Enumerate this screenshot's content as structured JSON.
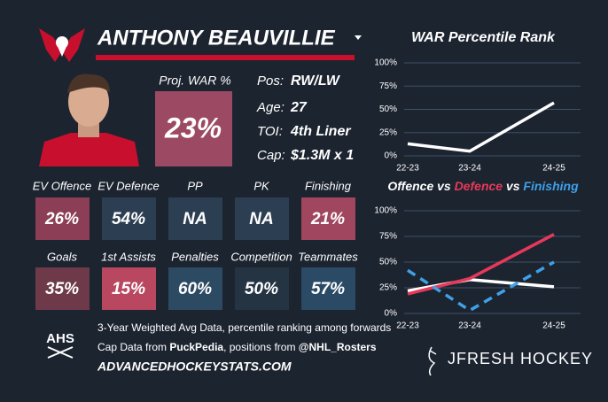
{
  "player": {
    "name": "ANTHONY BEAUVILLIE",
    "proj_war": {
      "label": "Proj. WAR %",
      "value": "23%",
      "color": "#9c4a63"
    },
    "info": [
      {
        "label": "Pos:",
        "value": "RW/LW"
      },
      {
        "label": "Age:",
        "value": "27"
      },
      {
        "label": "TOI:",
        "value": "4th Liner"
      },
      {
        "label": "Cap:",
        "value": "$1.3M x 1"
      }
    ]
  },
  "tiles": [
    {
      "label": "EV Offence",
      "value": "26%",
      "color": "#8b3e55"
    },
    {
      "label": "EV Defence",
      "value": "54%",
      "color": "#2c3e52"
    },
    {
      "label": "PP",
      "value": "NA",
      "color": "#2c3e52"
    },
    {
      "label": "PK",
      "value": "NA",
      "color": "#2c3e52"
    },
    {
      "label": "Finishing",
      "value": "21%",
      "color": "#a0475f"
    },
    {
      "label": "Goals",
      "value": "35%",
      "color": "#6e3a4a"
    },
    {
      "label": "1st Assists",
      "value": "15%",
      "color": "#b8475f"
    },
    {
      "label": "Penalties",
      "value": "60%",
      "color": "#2d4a63"
    },
    {
      "label": "Competition",
      "value": "50%",
      "color": "#253443"
    },
    {
      "label": "Teammates",
      "value": "57%",
      "color": "#2a4a66"
    }
  ],
  "footer": {
    "line1": "3-Year Weighted Avg Data, percentile ranking among forwards",
    "line2": [
      "Cap Data from ",
      "PuckPedia",
      ", positions from ",
      "@NHL_Rosters"
    ],
    "site": "ADVANCEDHOCKEYSTATS.COM",
    "ahs": "AHS",
    "brand": "JFRESH HOCKEY"
  },
  "chart_data": [
    {
      "type": "line",
      "title": "WAR Percentile Rank",
      "categories": [
        "22-23",
        "23-24",
        "24-25"
      ],
      "series": [
        {
          "name": "WAR",
          "color": "#ffffff",
          "dash": false,
          "values": [
            13,
            5,
            57
          ]
        }
      ],
      "ylim": [
        0,
        100
      ],
      "yticks": [
        {
          "value": 0,
          "label": "0%"
        },
        {
          "value": 25,
          "label": "25%"
        },
        {
          "value": 50,
          "label": "50%"
        },
        {
          "value": 75,
          "label": "75%"
        },
        {
          "value": 100,
          "label": "100%"
        }
      ],
      "grid": true
    },
    {
      "type": "line",
      "title_separator": "vs",
      "categories": [
        "22-23",
        "23-24",
        "24-25"
      ],
      "series": [
        {
          "name": "Offence",
          "color": "#ffffff",
          "dash": false,
          "values": [
            22,
            33,
            26
          ]
        },
        {
          "name": "Defence",
          "color": "#e8385a",
          "dash": false,
          "values": [
            19,
            34,
            77
          ]
        },
        {
          "name": "Finishing",
          "color": "#3fa0e8",
          "dash": true,
          "values": [
            42,
            3,
            50
          ]
        }
      ],
      "ylim": [
        0,
        100
      ],
      "yticks": [
        {
          "value": 0,
          "label": "0%"
        },
        {
          "value": 25,
          "label": "25%"
        },
        {
          "value": 50,
          "label": "50%"
        },
        {
          "value": 75,
          "label": "75%"
        },
        {
          "value": 100,
          "label": "100%"
        }
      ],
      "grid": true
    }
  ]
}
